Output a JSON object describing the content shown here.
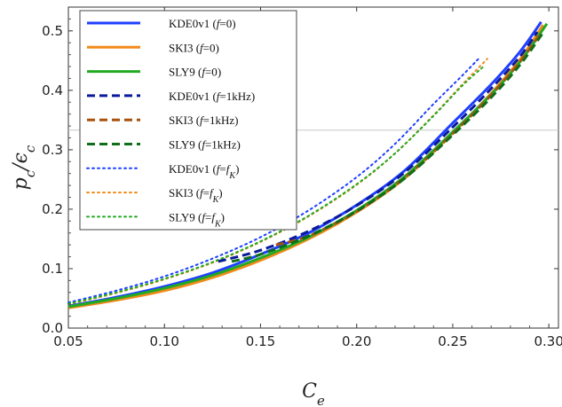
{
  "chart_data": {
    "type": "line",
    "xlabel": "C_e",
    "ylabel": "p_c/ε_c",
    "xlim": [
      0.05,
      0.305
    ],
    "ylim": [
      0.0,
      0.54
    ],
    "xticks": [
      "0.05",
      "0.10",
      "0.15",
      "0.20",
      "0.25",
      "0.30"
    ],
    "yticks": [
      "0.0",
      "0.1",
      "0.2",
      "0.3",
      "0.4",
      "0.5"
    ],
    "reference_line": {
      "y": 0.333,
      "color": "#c8c8c8"
    },
    "legend_position": "top-left",
    "colors": {
      "KDE0v1": "#1f3fff",
      "SKI3": "#f08a1c",
      "SLY9": "#22aa22",
      "KDE0v1_dark": "#0a1a9a",
      "SKI3_dark": "#a8520e",
      "SLY9_dark": "#0e6e1a"
    },
    "series": [
      {
        "name": "KDE0v1",
        "cond": "f=0",
        "style": "solid",
        "color": "#1f3fff",
        "x": [
          0.05,
          0.075,
          0.1,
          0.125,
          0.15,
          0.175,
          0.2,
          0.225,
          0.25,
          0.27,
          0.285,
          0.296
        ],
        "y": [
          0.037,
          0.052,
          0.07,
          0.093,
          0.124,
          0.16,
          0.207,
          0.265,
          0.345,
          0.41,
          0.465,
          0.515
        ]
      },
      {
        "name": "SKI3",
        "cond": "f=0",
        "style": "solid",
        "color": "#f08a1c",
        "x": [
          0.05,
          0.075,
          0.1,
          0.125,
          0.15,
          0.175,
          0.2,
          0.225,
          0.25,
          0.27,
          0.285,
          0.297
        ],
        "y": [
          0.034,
          0.047,
          0.063,
          0.085,
          0.114,
          0.15,
          0.195,
          0.252,
          0.328,
          0.395,
          0.452,
          0.51
        ]
      },
      {
        "name": "SLY9",
        "cond": "f=0",
        "style": "solid",
        "color": "#22aa22",
        "x": [
          0.05,
          0.075,
          0.1,
          0.125,
          0.15,
          0.175,
          0.2,
          0.225,
          0.25,
          0.27,
          0.285,
          0.299
        ],
        "y": [
          0.036,
          0.05,
          0.067,
          0.089,
          0.118,
          0.153,
          0.198,
          0.255,
          0.33,
          0.393,
          0.448,
          0.512
        ]
      },
      {
        "name": "KDE0v1",
        "cond": "f=1kHz",
        "style": "dashed",
        "color": "#0a1a9a",
        "x": [
          0.128,
          0.15,
          0.175,
          0.2,
          0.225,
          0.25,
          0.27,
          0.285,
          0.294
        ],
        "y": [
          0.112,
          0.131,
          0.163,
          0.206,
          0.262,
          0.338,
          0.403,
          0.457,
          0.498
        ]
      },
      {
        "name": "SKI3",
        "cond": "f=1kHz",
        "style": "dashed",
        "color": "#a8520e",
        "x": [
          0.158,
          0.175,
          0.2,
          0.225,
          0.25,
          0.27,
          0.285,
          0.295
        ],
        "y": [
          0.14,
          0.155,
          0.196,
          0.253,
          0.327,
          0.392,
          0.448,
          0.492
        ]
      },
      {
        "name": "SLY9",
        "cond": "f=1kHz",
        "style": "dashed",
        "color": "#0e6e1a",
        "x": [
          0.135,
          0.15,
          0.175,
          0.2,
          0.225,
          0.25,
          0.27,
          0.285,
          0.297
        ],
        "y": [
          0.112,
          0.124,
          0.155,
          0.197,
          0.252,
          0.325,
          0.388,
          0.443,
          0.497
        ]
      },
      {
        "name": "KDE0v1",
        "cond": "f=f_K",
        "style": "dotted",
        "color": "#1f3fff",
        "x": [
          0.05,
          0.075,
          0.1,
          0.125,
          0.15,
          0.175,
          0.2,
          0.22,
          0.24,
          0.255,
          0.264
        ],
        "y": [
          0.043,
          0.063,
          0.087,
          0.117,
          0.153,
          0.198,
          0.254,
          0.31,
          0.377,
          0.425,
          0.455
        ]
      },
      {
        "name": "SKI3",
        "cond": "f=f_K",
        "style": "dotted",
        "color": "#f08a1c",
        "x": [
          0.05,
          0.075,
          0.1,
          0.125,
          0.15,
          0.175,
          0.2,
          0.22,
          0.24,
          0.255,
          0.268
        ],
        "y": [
          0.04,
          0.059,
          0.082,
          0.11,
          0.145,
          0.188,
          0.241,
          0.294,
          0.358,
          0.41,
          0.453
        ]
      },
      {
        "name": "SLY9",
        "cond": "f=f_K",
        "style": "dotted",
        "color": "#22aa22",
        "x": [
          0.05,
          0.075,
          0.1,
          0.125,
          0.15,
          0.175,
          0.2,
          0.22,
          0.24,
          0.255,
          0.266
        ],
        "y": [
          0.041,
          0.06,
          0.083,
          0.111,
          0.146,
          0.189,
          0.242,
          0.294,
          0.357,
          0.408,
          0.44
        ]
      }
    ]
  }
}
